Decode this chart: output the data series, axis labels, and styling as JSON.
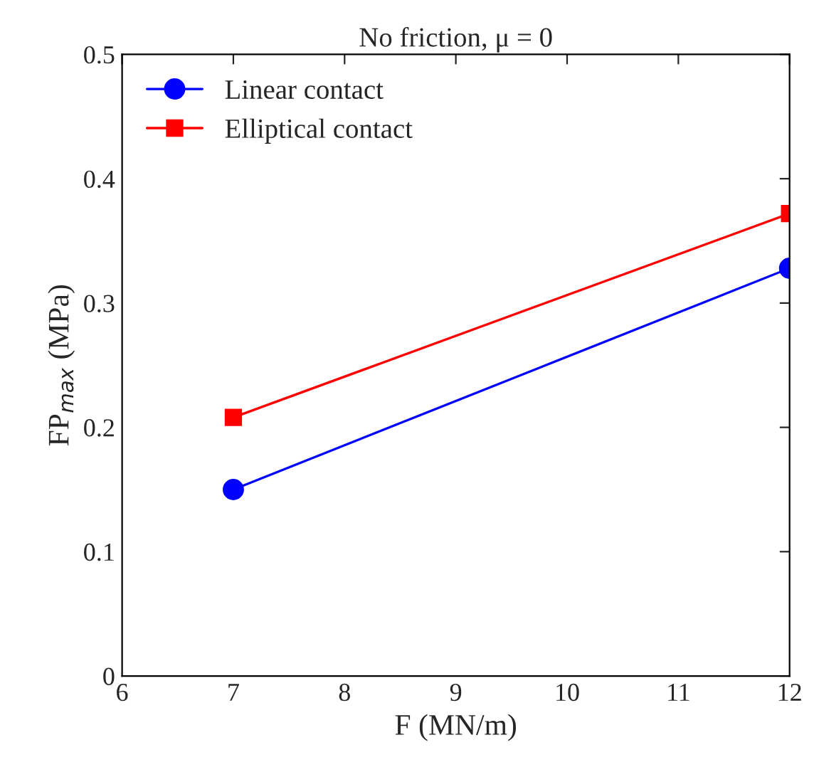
{
  "chart_data": {
    "type": "line",
    "title": "No friction, μ = 0",
    "xlabel": "F (MN/m)",
    "ylabel": "FP$_{max}$ (MPa)",
    "x": [
      7,
      12
    ],
    "series": [
      {
        "name": "Linear contact",
        "color": "#0000ff",
        "marker": "circle",
        "values": [
          0.15,
          0.328
        ]
      },
      {
        "name": "Elliptical contact",
        "color": "#ff0000",
        "marker": "square",
        "values": [
          0.208,
          0.372
        ]
      }
    ],
    "xlim": [
      6,
      12
    ],
    "xticks": [
      6,
      7,
      8,
      9,
      10,
      11,
      12
    ],
    "ylim": [
      0,
      0.5
    ],
    "yticks": [
      0,
      0.1,
      0.2,
      0.3,
      0.4,
      0.5
    ],
    "grid": false,
    "legend": "top left"
  }
}
